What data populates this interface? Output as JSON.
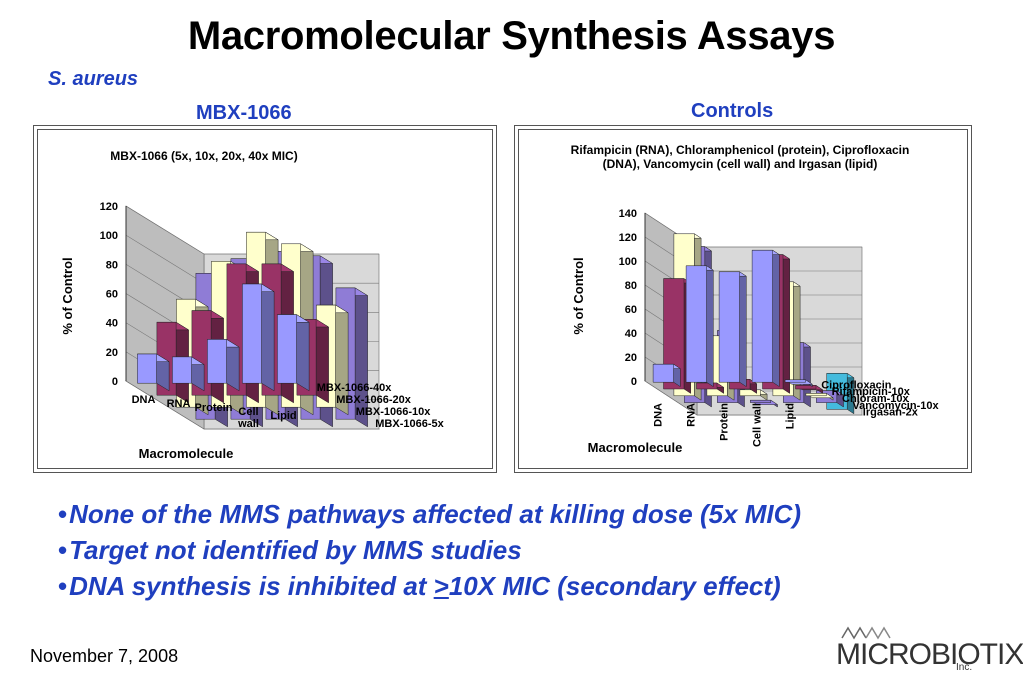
{
  "slide": {
    "title": "Macromolecular Synthesis Assays",
    "organism": "S. aureus",
    "left_heading": "MBX-1066",
    "right_heading": "Controls",
    "bullets": [
      "None of the MMS pathways affected at killing dose (5x MIC)",
      "Target not identified by MMS studies",
      "DNA synthesis is inhibited at "
    ],
    "bullet3_underlined": ">",
    "bullet3_tail": "10X MIC (secondary effect)",
    "date": "November 7, 2008",
    "logo_text": "MICROBIOTIX",
    "logo_suffix": "Inc."
  },
  "chart_data": [
    {
      "type": "bar",
      "title": "MBX-1066 (5x, 10x, 20x, 40x MIC)",
      "xlabel": "Macromolecule",
      "ylabel": "% of Control",
      "ylim": [
        0,
        120
      ],
      "yticks": [
        0,
        20,
        40,
        60,
        80,
        100,
        120
      ],
      "categories": [
        "DNA",
        "RNA",
        "Protein",
        "Cell wall",
        "Lipid"
      ],
      "series": [
        {
          "name": "MBX-1066-40x",
          "color": "#9999ff",
          "values": [
            20,
            18,
            30,
            68,
            47
          ]
        },
        {
          "name": "MBX-1066-20x",
          "color": "#993366",
          "values": [
            50,
            58,
            90,
            90,
            52
          ]
        },
        {
          "name": "MBX-1066-10x",
          "color": "#ffffcc",
          "values": [
            74,
            100,
            120,
            112,
            70
          ]
        },
        {
          "name": "MBX-1066-5x",
          "color": "#8f7cd6",
          "values": [
            100,
            110,
            115,
            112,
            90
          ]
        }
      ],
      "grid": true,
      "legend": "right (depth axis)"
    },
    {
      "type": "bar",
      "title": "Rifampicin (RNA), Chloramphenicol (protein), Ciprofloxacin (DNA), Vancomycin (cell wall) and Irgasan (lipid)",
      "xlabel": "Macromolecule",
      "ylabel": "% of Control",
      "ylim": [
        0,
        140
      ],
      "yticks": [
        0,
        20,
        40,
        60,
        80,
        100,
        120,
        140
      ],
      "categories": [
        "DNA",
        "RNA",
        "Protein",
        "Cell wall",
        "Lipid"
      ],
      "series": [
        {
          "name": "Ciprofloxacin",
          "color": "#9999ff",
          "values": [
            15,
            97,
            92,
            110,
            2
          ]
        },
        {
          "name": "Rifampicin-10x",
          "color": "#993366",
          "values": [
            92,
            5,
            8,
            112,
            3
          ]
        },
        {
          "name": "Chloram-10x",
          "color": "#ffffcc",
          "values": [
            135,
            50,
            5,
            95,
            2
          ]
        },
        {
          "name": "Vancomycin-10x",
          "color": "#8f7cd6",
          "values": [
            130,
            60,
            2,
            50,
            10
          ]
        },
        {
          "name": "Irgasan-2x",
          "color": "#44bbdd",
          "values": [
            0,
            0,
            0,
            0,
            30
          ]
        }
      ],
      "grid": true,
      "legend": "right (depth axis)"
    }
  ]
}
